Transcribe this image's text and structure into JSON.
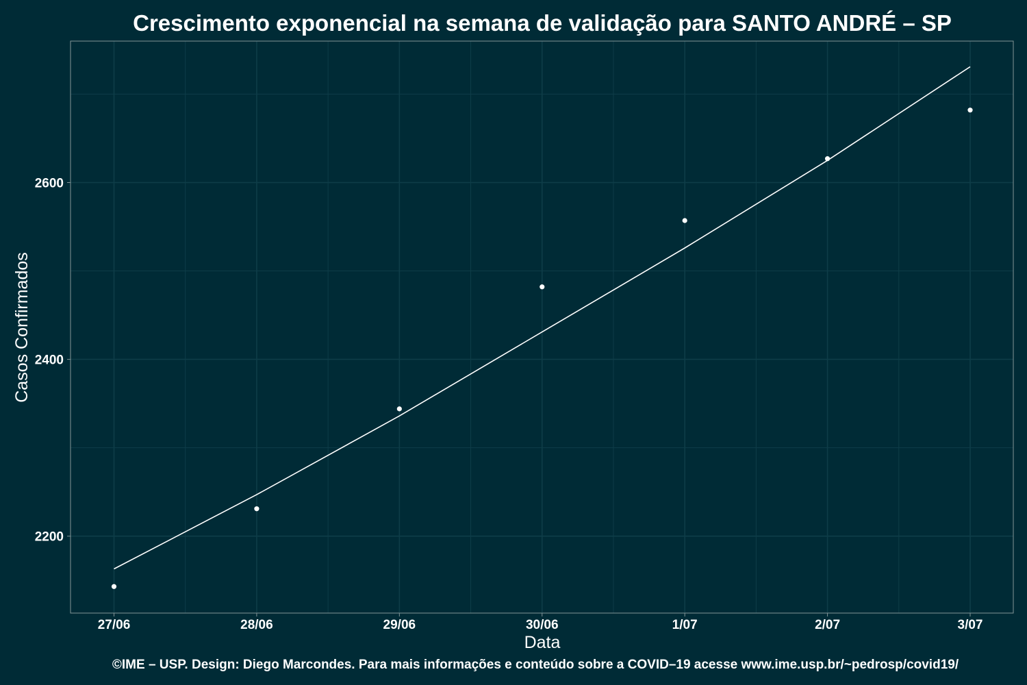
{
  "chart_data": {
    "type": "scatter",
    "title": "Crescimento exponencial na semana de validação para SANTO ANDRÉ – SP",
    "xlabel": "Data",
    "ylabel": "Casos Confirmados",
    "caption": "©IME – USP. Design: Diego Marcondes. Para mais informações e conteúdo sobre a COVID–19 acesse www.ime.usp.br/~pedrosp/covid19/",
    "categories": [
      "27/06",
      "28/06",
      "29/06",
      "30/06",
      "1/07",
      "2/07",
      "3/07"
    ],
    "y_ticks": [
      2200,
      2400,
      2600
    ],
    "ylim": [
      2113,
      2760
    ],
    "grid": true,
    "legend": "none",
    "series": [
      {
        "type": "scatter",
        "values": [
          2143,
          2231,
          2344,
          2482,
          2557,
          2627,
          2682
        ]
      },
      {
        "type": "line",
        "values": [
          2163,
          2247,
          2336,
          2431,
          2526,
          2625,
          2731
        ]
      }
    ],
    "colors": {
      "background": "#002b36",
      "panel_border": "#839496",
      "grid": "#0e3d48",
      "mark": "#ffffff"
    }
  }
}
